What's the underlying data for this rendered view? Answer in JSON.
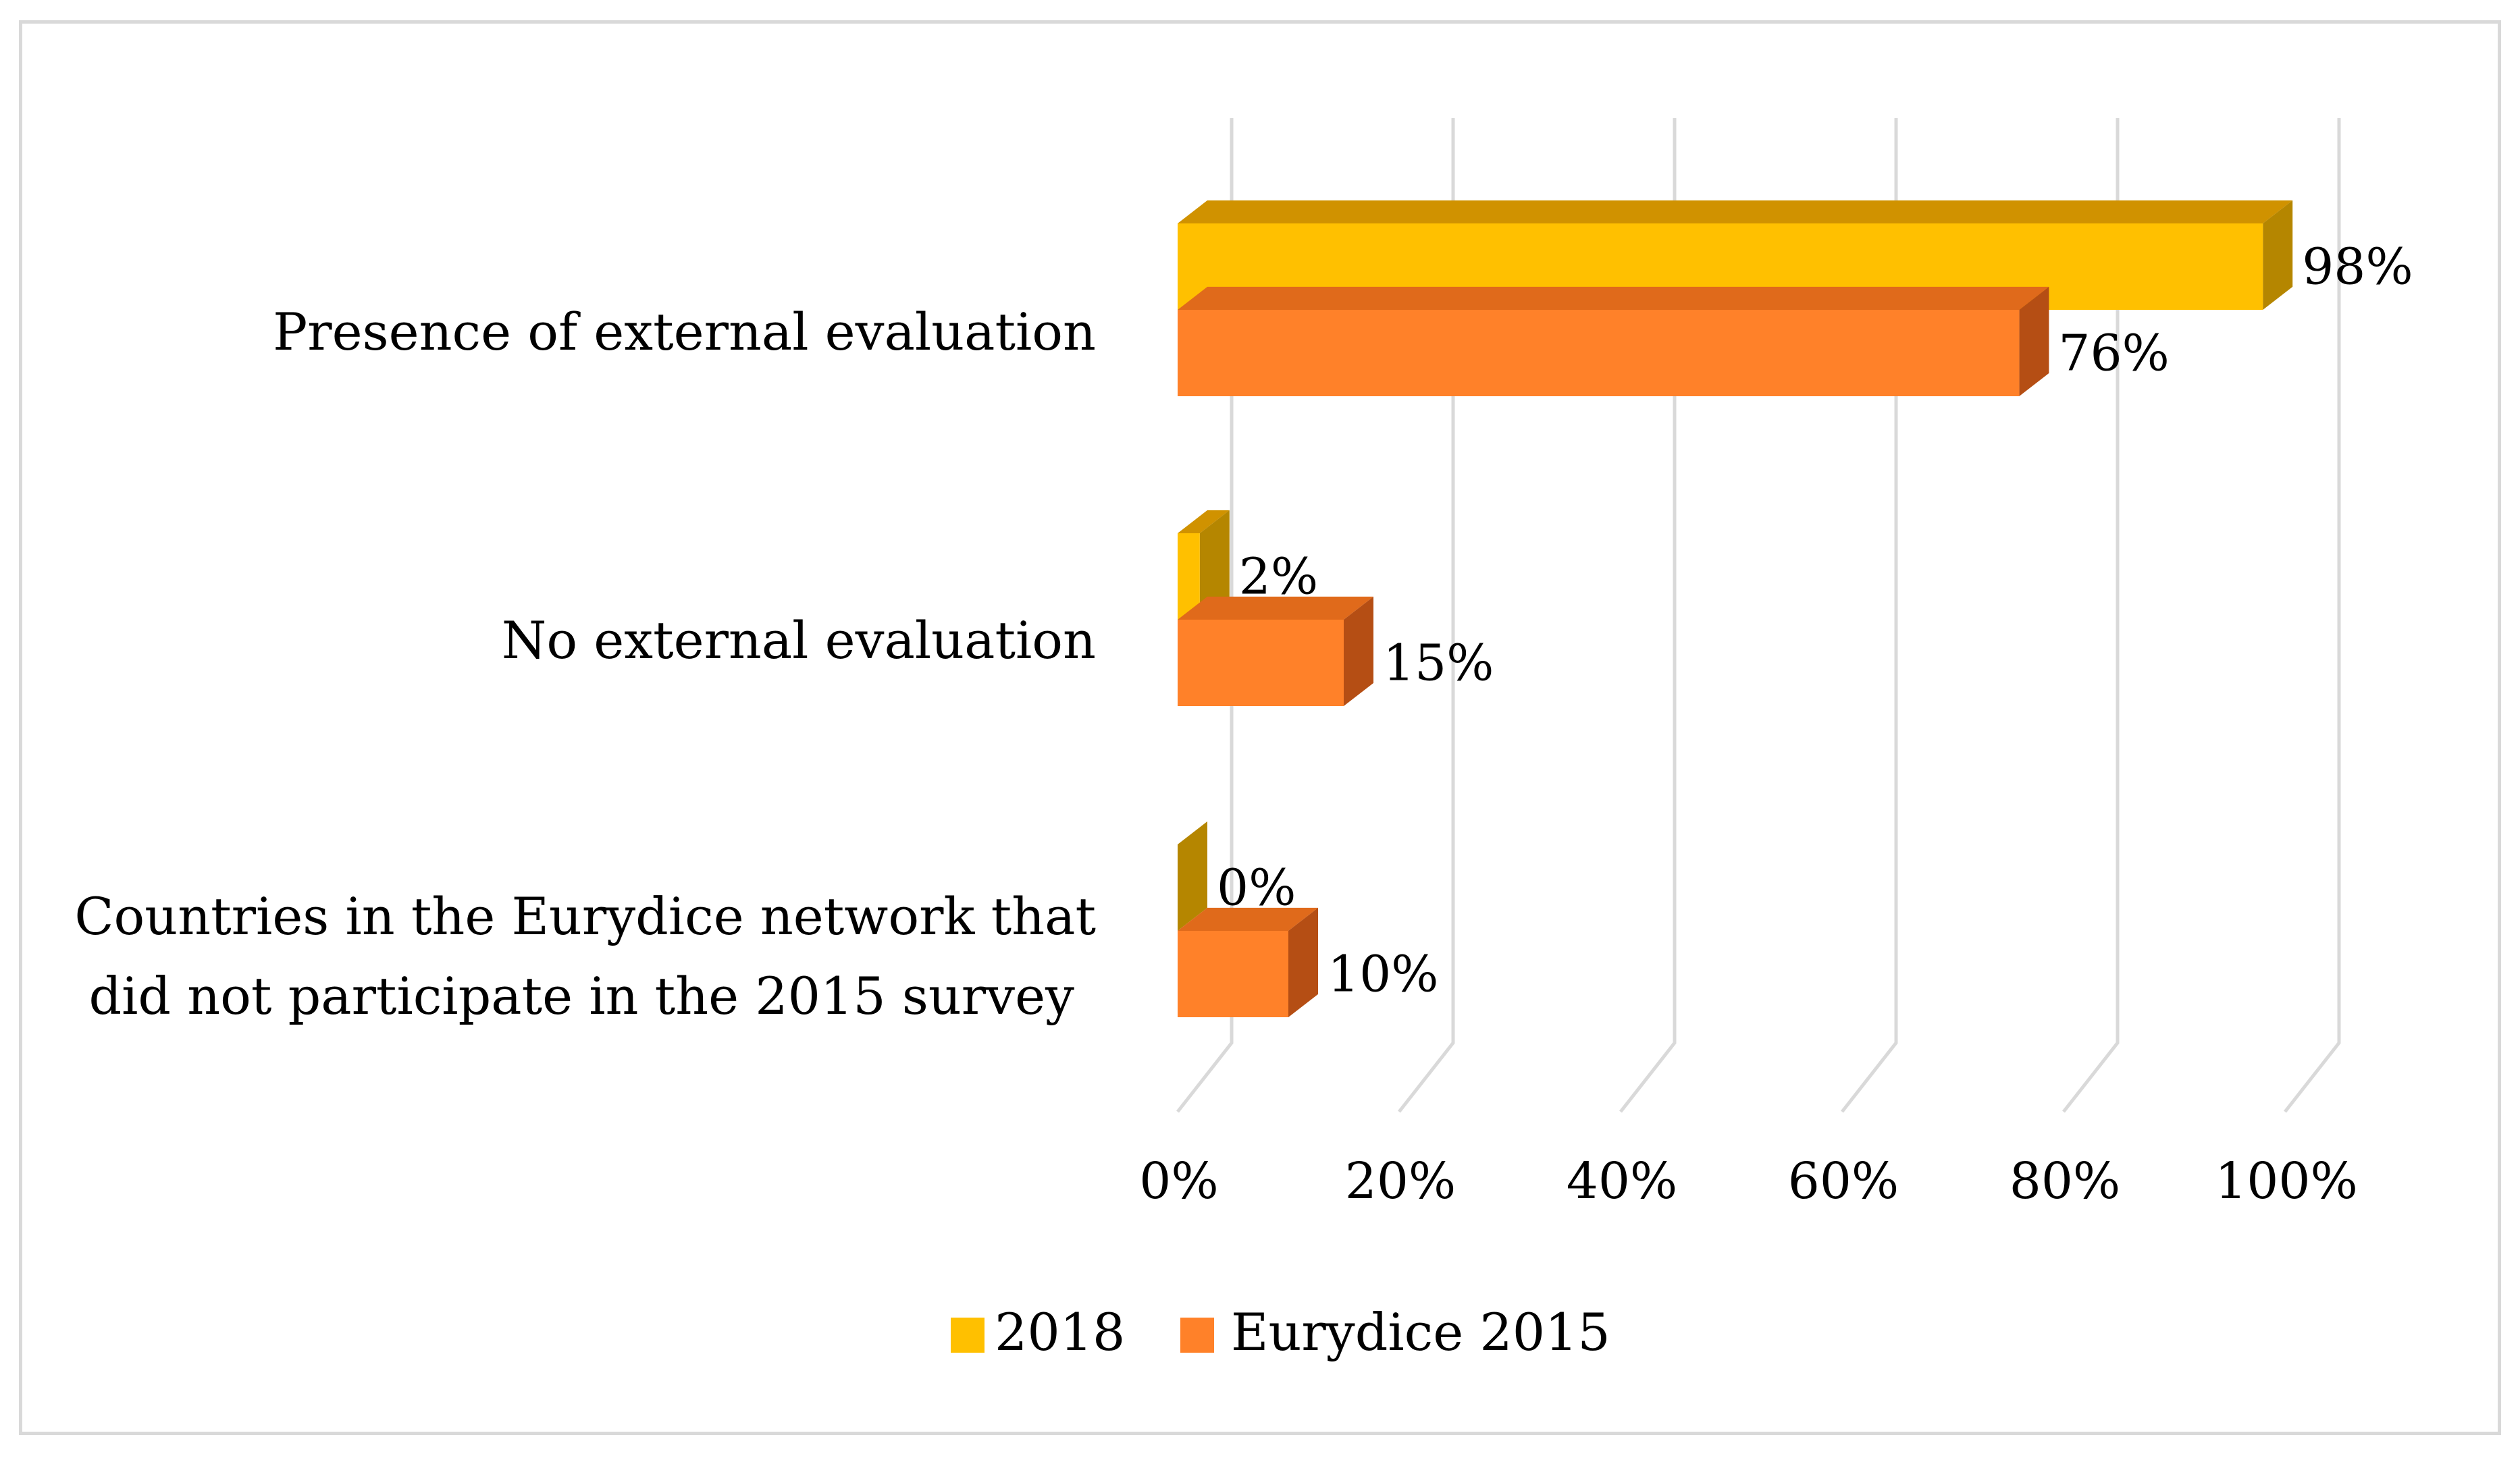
{
  "chart_data": {
    "type": "bar",
    "orientation": "horizontal",
    "style": "3d-clustered",
    "categories": [
      "Presence of external evaluation",
      "No external evaluation",
      "Countries in the Eurydice network that did not participate in the 2015 survey"
    ],
    "category_lines": [
      [
        "Presence of external evaluation"
      ],
      [
        "No external evaluation"
      ],
      [
        "Countries in the Eurydice network that",
        "did not participate in the 2015 survey"
      ]
    ],
    "series": [
      {
        "name": "2018",
        "values": [
          98,
          2,
          0
        ],
        "labels": [
          "98%",
          "2%",
          "0%"
        ],
        "color": "#FFC000",
        "top_color": "#D09200",
        "side_color": "#B58600"
      },
      {
        "name": "Eurydice 2015",
        "values": [
          76,
          15,
          10
        ],
        "labels": [
          "76%",
          "15%",
          "10%"
        ],
        "color": "#FF8129",
        "top_color": "#E06A1B",
        "side_color": "#B54E14"
      }
    ],
    "x_ticks": [
      "0%",
      "20%",
      "40%",
      "60%",
      "80%",
      "100%"
    ],
    "x_tick_values": [
      0,
      20,
      40,
      60,
      80,
      100
    ],
    "xlim": [
      0,
      100
    ],
    "grid": true,
    "legend_position": "bottom",
    "title": "",
    "xlabel": "",
    "ylabel": ""
  }
}
